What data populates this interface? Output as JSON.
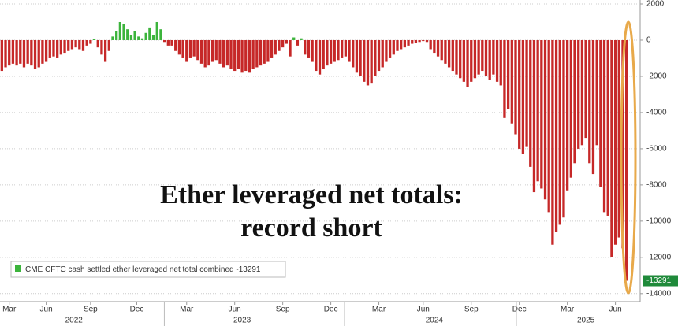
{
  "chart_data": {
    "type": "bar",
    "annotation": [
      "Ether leveraged net totals:",
      "record short"
    ],
    "categories": [
      null,
      null,
      null,
      null,
      null,
      null,
      null,
      null,
      null,
      null,
      null,
      null,
      null,
      null,
      null,
      null,
      null,
      null,
      null,
      null,
      null,
      null,
      null,
      null,
      null,
      null,
      null,
      null,
      null,
      null,
      null,
      null,
      null,
      null,
      null,
      null,
      null,
      null,
      null,
      null,
      null,
      null,
      null,
      null,
      null,
      null,
      null,
      null,
      null,
      null,
      null,
      null,
      null,
      null,
      null,
      null,
      null,
      null,
      null,
      null,
      null,
      null,
      null,
      null,
      null,
      null,
      null,
      null,
      null,
      null,
      null,
      null,
      null,
      null,
      null,
      null,
      null,
      null,
      null,
      null,
      null,
      null,
      null,
      null,
      null,
      null,
      null,
      null,
      null,
      null,
      null,
      null,
      null,
      null,
      null,
      null,
      null,
      null,
      null,
      null,
      null,
      null,
      null,
      null,
      null,
      null,
      null,
      null,
      null,
      null,
      null,
      null,
      null,
      null,
      null,
      null,
      null,
      null,
      null,
      null,
      null,
      null,
      null,
      null,
      null,
      null,
      null,
      null,
      null,
      null,
      null,
      null,
      null,
      null,
      null,
      null,
      null,
      null,
      null,
      null,
      null,
      null,
      null,
      null,
      null,
      null,
      null,
      null,
      null,
      null,
      null,
      null,
      null,
      null,
      null,
      null,
      null,
      null,
      null,
      null,
      null,
      null,
      null,
      null,
      null,
      null,
      null,
      null,
      null,
      null
    ],
    "series": [
      {
        "name": "CME CFTC cash settled ether leveraged net total combined",
        "color": "#3cb43c",
        "negative_color": "#c62828",
        "values": [
          -1700,
          -1500,
          -1400,
          -1300,
          -1400,
          -1300,
          -1500,
          -1300,
          -1400,
          -1600,
          -1500,
          -1300,
          -1200,
          -1000,
          -900,
          -1000,
          -800,
          -700,
          -600,
          -500,
          -400,
          -500,
          -600,
          -300,
          -200,
          50,
          -400,
          -800,
          -1200,
          -600,
          200,
          500,
          1000,
          900,
          600,
          300,
          500,
          200,
          100,
          400,
          700,
          300,
          1000,
          600,
          -100,
          -300,
          -300,
          -600,
          -800,
          -1000,
          -1200,
          -1000,
          -900,
          -1100,
          -1300,
          -1500,
          -1400,
          -1200,
          -1100,
          -1300,
          -1500,
          -1400,
          -1600,
          -1700,
          -1600,
          -1800,
          -1700,
          -1800,
          -1600,
          -1500,
          -1400,
          -1300,
          -1200,
          -1000,
          -800,
          -600,
          -400,
          -200,
          -900,
          150,
          -300,
          100,
          -800,
          -1000,
          -1200,
          -1700,
          -1900,
          -1600,
          -1400,
          -1300,
          -1200,
          -1100,
          -1000,
          -900,
          -1200,
          -1500,
          -1800,
          -2000,
          -2300,
          -2500,
          -2400,
          -2000,
          -1700,
          -1500,
          -1200,
          -1000,
          -800,
          -600,
          -500,
          -400,
          -300,
          -200,
          -150,
          -100,
          -50,
          -100,
          -500,
          -700,
          -900,
          -1100,
          -1300,
          -1500,
          -1700,
          -1900,
          -2100,
          -2300,
          -2600,
          -2300,
          -2100,
          -1900,
          -1700,
          -2000,
          -2200,
          -1900,
          -2300,
          -2500,
          -4300,
          -3800,
          -4600,
          -5200,
          -6000,
          -6300,
          -5900,
          -7000,
          -8400,
          -7800,
          -8200,
          -8800,
          -9500,
          -11300,
          -10600,
          -10200,
          -9800,
          -8300,
          -7600,
          -6800,
          -6000,
          -5800,
          -5400,
          -6800,
          -7400,
          -5800,
          -8100,
          -9500,
          -9700,
          -12000,
          -11300,
          -10900,
          -11500,
          -13291
        ]
      }
    ],
    "ylim": [
      -14400,
      2000
    ],
    "yticks": [
      2000,
      0,
      -2000,
      -4000,
      -6000,
      -8000,
      -10000,
      -12000,
      -14000
    ],
    "xlim": [
      -0.5,
      169.5
    ],
    "xticks": [
      {
        "value": 2,
        "label": "Mar"
      },
      {
        "value": 12,
        "label": "Jun"
      },
      {
        "value": 24,
        "label": "Sep"
      },
      {
        "value": 36.5,
        "label": "Dec"
      },
      {
        "value": 50,
        "label": "Mar"
      },
      {
        "value": 63,
        "label": "Jun"
      },
      {
        "value": 76,
        "label": "Sep"
      },
      {
        "value": 89,
        "label": "Dec"
      },
      {
        "value": 102,
        "label": "Mar"
      },
      {
        "value": 114,
        "label": "Jun"
      },
      {
        "value": 127,
        "label": "Sep"
      },
      {
        "value": 140,
        "label": "Dec"
      },
      {
        "value": 153,
        "label": "Mar"
      },
      {
        "value": 166,
        "label": "Jun"
      }
    ],
    "year_ticks": [
      {
        "value": 19.5,
        "label": "2022"
      },
      {
        "value": 65,
        "label": "2023"
      },
      {
        "value": 117,
        "label": "2024"
      },
      {
        "value": 158,
        "label": "2025"
      }
    ],
    "grid": true
  }
}
